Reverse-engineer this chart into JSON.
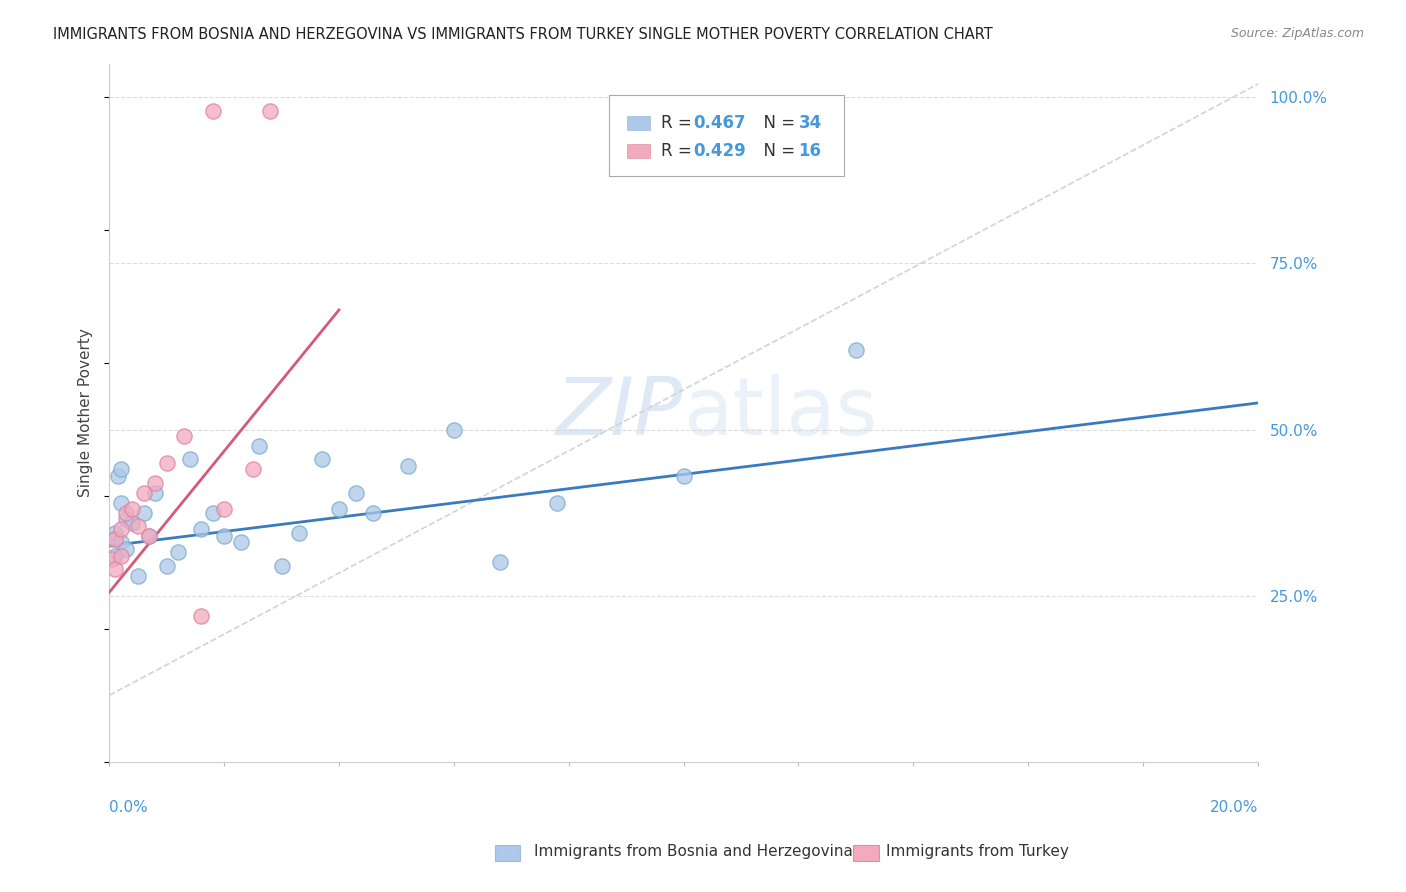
{
  "title": "IMMIGRANTS FROM BOSNIA AND HERZEGOVINA VS IMMIGRANTS FROM TURKEY SINGLE MOTHER POVERTY CORRELATION CHART",
  "source": "Source: ZipAtlas.com",
  "ylabel": "Single Mother Poverty",
  "ytick_vals": [
    0.25,
    0.5,
    0.75,
    1.0
  ],
  "ytick_labels": [
    "25.0%",
    "50.0%",
    "75.0%",
    "100.0%"
  ],
  "watermark": "ZIPatlas",
  "bosnia_color": "#adc8e8",
  "turkey_color": "#f2aabe",
  "bosnia_line_color": "#3a7bbf",
  "turkey_line_color": "#d45a78",
  "diagonal_color": "#c8c8c8",
  "bosnia_x": [
    0.0005,
    0.001,
    0.001,
    0.0015,
    0.002,
    0.002,
    0.002,
    0.003,
    0.003,
    0.004,
    0.005,
    0.006,
    0.007,
    0.008,
    0.01,
    0.012,
    0.014,
    0.016,
    0.018,
    0.02,
    0.023,
    0.026,
    0.03,
    0.033,
    0.037,
    0.04,
    0.043,
    0.046,
    0.052,
    0.06,
    0.068,
    0.078,
    0.1,
    0.13
  ],
  "bosnia_y": [
    0.335,
    0.345,
    0.31,
    0.43,
    0.44,
    0.33,
    0.39,
    0.365,
    0.32,
    0.36,
    0.28,
    0.375,
    0.34,
    0.405,
    0.295,
    0.315,
    0.455,
    0.35,
    0.375,
    0.34,
    0.33,
    0.475,
    0.295,
    0.345,
    0.455,
    0.38,
    0.405,
    0.375,
    0.445,
    0.5,
    0.3,
    0.39,
    0.43,
    0.62
  ],
  "turkey_x": [
    0.0005,
    0.001,
    0.001,
    0.002,
    0.002,
    0.003,
    0.004,
    0.005,
    0.006,
    0.007,
    0.008,
    0.01,
    0.013,
    0.016,
    0.02,
    0.025,
    0.018,
    0.028
  ],
  "turkey_y": [
    0.305,
    0.335,
    0.29,
    0.35,
    0.31,
    0.375,
    0.38,
    0.355,
    0.405,
    0.34,
    0.42,
    0.45,
    0.49,
    0.22,
    0.38,
    0.44,
    0.98,
    0.98
  ],
  "xlim": [
    0.0,
    0.2
  ],
  "ylim_data": [
    0.0,
    1.05
  ],
  "bosnia_line_x": [
    0.0,
    0.2
  ],
  "bosnia_line_y": [
    0.325,
    0.54
  ],
  "turkey_line_x": [
    0.0,
    0.04
  ],
  "turkey_line_y": [
    0.255,
    0.68
  ],
  "background_color": "#ffffff",
  "grid_color": "#dddddd"
}
